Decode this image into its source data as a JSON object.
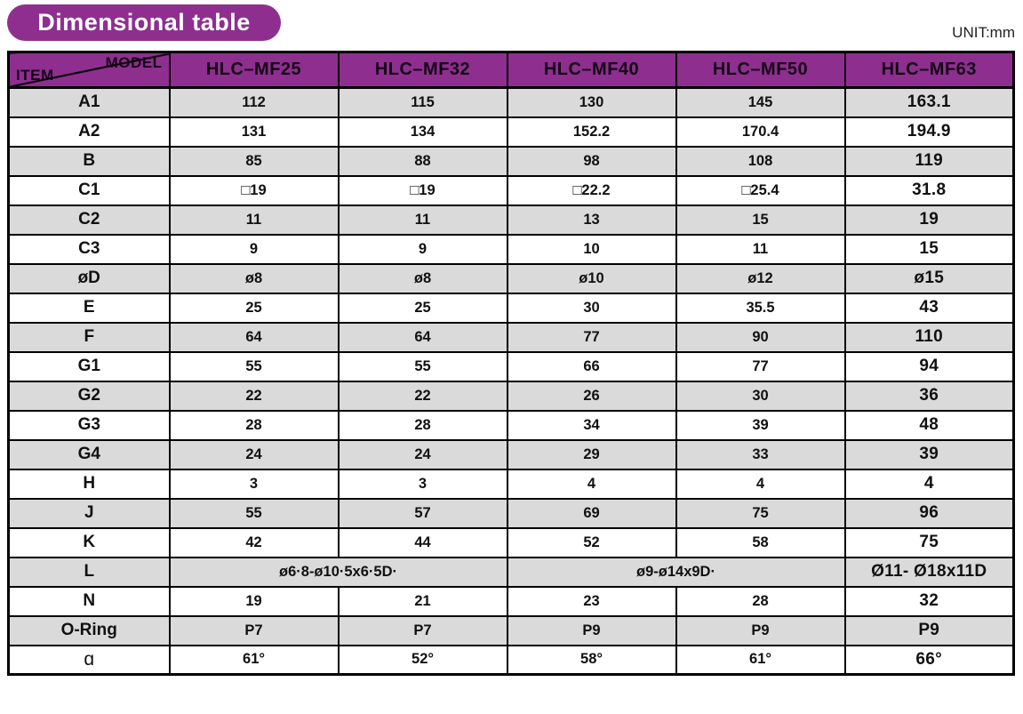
{
  "page": {
    "title": "Dimensional table",
    "unit_label": "UNIT:mm"
  },
  "colors": {
    "purple": "#8e2f90",
    "row_shaded": "#dadada",
    "row_plain": "#ffffff",
    "border": "#000000",
    "title_text": "#ffffff",
    "header_text": "#140314"
  },
  "table": {
    "corner": {
      "top_right": "MODEL",
      "bottom_left": "ITEM"
    },
    "columns": [
      "HLC–MF25",
      "HLC–MF32",
      "HLC–MF40",
      "HLC–MF50",
      "HLC–MF63"
    ],
    "rows": [
      {
        "item": "A1",
        "shaded": true,
        "cells": [
          {
            "text": "112"
          },
          {
            "text": "115"
          },
          {
            "text": "130"
          },
          {
            "text": "145"
          },
          {
            "text": "163.1"
          }
        ]
      },
      {
        "item": "A2",
        "shaded": false,
        "cells": [
          {
            "text": "131"
          },
          {
            "text": "134"
          },
          {
            "text": "152.2"
          },
          {
            "text": "170.4"
          },
          {
            "text": "194.9"
          }
        ]
      },
      {
        "item": "B",
        "shaded": true,
        "cells": [
          {
            "text": "85"
          },
          {
            "text": "88"
          },
          {
            "text": "98"
          },
          {
            "text": "108"
          },
          {
            "text": "119"
          }
        ]
      },
      {
        "item": "C1",
        "shaded": false,
        "cells": [
          {
            "text": "□19"
          },
          {
            "text": "□19"
          },
          {
            "text": "□22.2"
          },
          {
            "text": "□25.4"
          },
          {
            "text": "31.8"
          }
        ]
      },
      {
        "item": "C2",
        "shaded": true,
        "cells": [
          {
            "text": "11"
          },
          {
            "text": "11"
          },
          {
            "text": "13"
          },
          {
            "text": "15"
          },
          {
            "text": "19"
          }
        ]
      },
      {
        "item": "C3",
        "shaded": false,
        "cells": [
          {
            "text": "9"
          },
          {
            "text": "9"
          },
          {
            "text": "10"
          },
          {
            "text": "11"
          },
          {
            "text": "15"
          }
        ]
      },
      {
        "item": "øD",
        "shaded": true,
        "cells": [
          {
            "text": "ø8"
          },
          {
            "text": "ø8"
          },
          {
            "text": "ø10"
          },
          {
            "text": "ø12"
          },
          {
            "text": "ø15"
          }
        ]
      },
      {
        "item": "E",
        "shaded": false,
        "cells": [
          {
            "text": "25"
          },
          {
            "text": "25"
          },
          {
            "text": "30"
          },
          {
            "text": "35.5"
          },
          {
            "text": "43"
          }
        ]
      },
      {
        "item": "F",
        "shaded": true,
        "cells": [
          {
            "text": "64"
          },
          {
            "text": "64"
          },
          {
            "text": "77"
          },
          {
            "text": "90"
          },
          {
            "text": "110"
          }
        ]
      },
      {
        "item": "G1",
        "shaded": false,
        "cells": [
          {
            "text": "55"
          },
          {
            "text": "55"
          },
          {
            "text": "66"
          },
          {
            "text": "77"
          },
          {
            "text": "94"
          }
        ]
      },
      {
        "item": "G2",
        "shaded": true,
        "cells": [
          {
            "text": "22"
          },
          {
            "text": "22"
          },
          {
            "text": "26"
          },
          {
            "text": "30"
          },
          {
            "text": "36"
          }
        ]
      },
      {
        "item": "G3",
        "shaded": false,
        "cells": [
          {
            "text": "28"
          },
          {
            "text": "28"
          },
          {
            "text": "34"
          },
          {
            "text": "39"
          },
          {
            "text": "48"
          }
        ]
      },
      {
        "item": "G4",
        "shaded": true,
        "cells": [
          {
            "text": "24"
          },
          {
            "text": "24"
          },
          {
            "text": "29"
          },
          {
            "text": "33"
          },
          {
            "text": "39"
          }
        ]
      },
      {
        "item": "H",
        "shaded": false,
        "cells": [
          {
            "text": "3"
          },
          {
            "text": "3"
          },
          {
            "text": "4"
          },
          {
            "text": "4"
          },
          {
            "text": "4"
          }
        ]
      },
      {
        "item": "J",
        "shaded": true,
        "cells": [
          {
            "text": "55"
          },
          {
            "text": "57"
          },
          {
            "text": "69"
          },
          {
            "text": "75"
          },
          {
            "text": "96"
          }
        ]
      },
      {
        "item": "K",
        "shaded": false,
        "cells": [
          {
            "text": "42"
          },
          {
            "text": "44"
          },
          {
            "text": "52"
          },
          {
            "text": "58"
          },
          {
            "text": "75"
          }
        ]
      },
      {
        "item": "L",
        "shaded": true,
        "cells": [
          {
            "text": "ø6·8-ø10·5x6·5D·",
            "span": 2
          },
          {
            "text": "ø9-ø14x9D·",
            "span": 2
          },
          {
            "text": "Ø11- Ø18x11D"
          }
        ]
      },
      {
        "item": "N",
        "shaded": false,
        "cells": [
          {
            "text": "19"
          },
          {
            "text": "21"
          },
          {
            "text": "23"
          },
          {
            "text": "28"
          },
          {
            "text": "32"
          }
        ]
      },
      {
        "item": "O-Ring",
        "shaded": true,
        "cells": [
          {
            "text": "P7"
          },
          {
            "text": "P7"
          },
          {
            "text": "P9"
          },
          {
            "text": "P9"
          },
          {
            "text": "P9"
          }
        ]
      },
      {
        "item": "ɑ",
        "shaded": false,
        "alpha": true,
        "cells": [
          {
            "text": "61°"
          },
          {
            "text": "52°"
          },
          {
            "text": "58°"
          },
          {
            "text": "61°"
          },
          {
            "text": "66°"
          }
        ]
      }
    ]
  }
}
